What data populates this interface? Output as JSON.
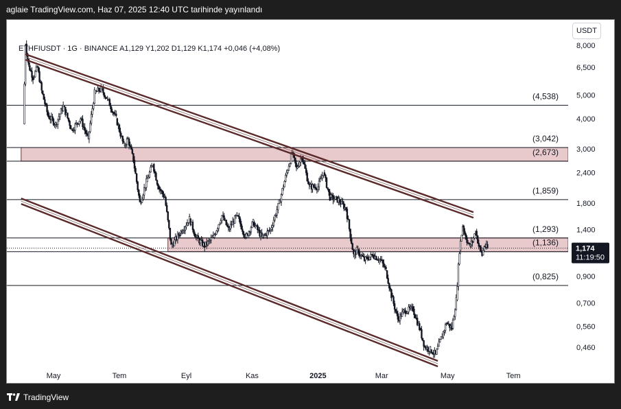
{
  "header": {
    "publish_text": "aglaie TradingView.com, Haz 07, 2025 12:40 UTC tarihinde yayınlandı"
  },
  "legend": {
    "symbol_line": "ETHFIUSDT · 1G · BINANCE  A1,129  Y1,202  D1,129  K1,174  +0,046 (+4,08%)"
  },
  "currency_button": "USDT",
  "footer": {
    "brand": "TradingView"
  },
  "colors": {
    "channel": "#5a2a2a",
    "zone_fill": "#e8c9cc",
    "candle": "#131722",
    "level_line": "#131722",
    "price_badge": "#131722"
  },
  "chart_data": {
    "type": "candlestick",
    "symbol": "ETHFIUSDT",
    "interval": "1G",
    "exchange": "BINANCE",
    "ohlc_last": {
      "open": 1.129,
      "high": 1.202,
      "low": 1.129,
      "close": 1.174,
      "change": 0.046,
      "change_pct": "+4,08%"
    },
    "y_scale": "log",
    "y_ticks": [
      {
        "value": 8.0,
        "label": "8,000"
      },
      {
        "value": 6.5,
        "label": "6,500"
      },
      {
        "value": 5.0,
        "label": "5,000"
      },
      {
        "value": 4.0,
        "label": "4,000"
      },
      {
        "value": 3.0,
        "label": "3,000"
      },
      {
        "value": 2.4,
        "label": "2,400"
      },
      {
        "value": 1.8,
        "label": "1,800"
      },
      {
        "value": 1.4,
        "label": "1,400"
      },
      {
        "value": 0.9,
        "label": "0,900"
      },
      {
        "value": 0.7,
        "label": "0,700"
      },
      {
        "value": 0.56,
        "label": "0,560"
      },
      {
        "value": 0.46,
        "label": "0,460"
      }
    ],
    "x_ticks": [
      {
        "date": "2024-05-01",
        "label": "May"
      },
      {
        "date": "2024-07-01",
        "label": "Tem"
      },
      {
        "date": "2024-09-01",
        "label": "Eyl"
      },
      {
        "date": "2024-11-01",
        "label": "Kas"
      },
      {
        "date": "2025-01-01",
        "label": "2025"
      },
      {
        "date": "2025-03-01",
        "label": "Mar"
      },
      {
        "date": "2025-05-01",
        "label": "May"
      },
      {
        "date": "2025-07-01",
        "label": "Tem"
      }
    ],
    "levels": [
      {
        "value": 4.538,
        "label": "(4,538)"
      },
      {
        "value": 3.042,
        "label": "(3,042)"
      },
      {
        "value": 2.673,
        "label": "(2,673)"
      },
      {
        "value": 1.859,
        "label": "(1,859)"
      },
      {
        "value": 1.293,
        "label": "(1,293)"
      },
      {
        "value": 1.136,
        "label": "(1,136)"
      },
      {
        "value": 0.825,
        "label": "(0,825)"
      }
    ],
    "zones": [
      {
        "from": 2.673,
        "to": 3.042,
        "start": "2024-04-01"
      },
      {
        "from": 1.136,
        "to": 1.293,
        "start": "2024-08-15"
      }
    ],
    "channel": {
      "upper": {
        "start": {
          "date": "2024-04-05",
          "value": 7.35
        },
        "end": {
          "date": "2025-05-25",
          "value": 1.65
        }
      },
      "lower": {
        "start": {
          "date": "2024-04-01",
          "value": 1.88
        },
        "end": {
          "date": "2025-04-22",
          "value": 0.404
        }
      }
    },
    "current_price": {
      "value": 1.174,
      "label": "1,174",
      "countdown": "11:19:50"
    },
    "series": [
      {
        "date": "2024-04-03",
        "close": 3.8
      },
      {
        "date": "2024-04-05",
        "close": 8.1
      },
      {
        "date": "2024-04-08",
        "close": 6.6
      },
      {
        "date": "2024-04-12",
        "close": 5.9
      },
      {
        "date": "2024-04-16",
        "close": 6.5
      },
      {
        "date": "2024-04-20",
        "close": 5.2
      },
      {
        "date": "2024-04-26",
        "close": 4.1
      },
      {
        "date": "2024-05-03",
        "close": 3.8
      },
      {
        "date": "2024-05-10",
        "close": 4.5
      },
      {
        "date": "2024-05-18",
        "close": 3.6
      },
      {
        "date": "2024-05-26",
        "close": 4.0
      },
      {
        "date": "2024-06-02",
        "close": 3.3
      },
      {
        "date": "2024-06-08",
        "close": 5.1
      },
      {
        "date": "2024-06-14",
        "close": 5.3
      },
      {
        "date": "2024-06-20",
        "close": 4.8
      },
      {
        "date": "2024-06-28",
        "close": 4.0
      },
      {
        "date": "2024-07-05",
        "close": 3.1
      },
      {
        "date": "2024-07-09",
        "close": 3.3
      },
      {
        "date": "2024-07-14",
        "close": 2.7
      },
      {
        "date": "2024-07-20",
        "close": 1.8
      },
      {
        "date": "2024-07-26",
        "close": 2.2
      },
      {
        "date": "2024-08-01",
        "close": 2.6
      },
      {
        "date": "2024-08-06",
        "close": 2.1
      },
      {
        "date": "2024-08-12",
        "close": 1.9
      },
      {
        "date": "2024-08-18",
        "close": 1.2
      },
      {
        "date": "2024-08-26",
        "close": 1.35
      },
      {
        "date": "2024-09-04",
        "close": 1.55
      },
      {
        "date": "2024-09-10",
        "close": 1.3
      },
      {
        "date": "2024-09-18",
        "close": 1.2
      },
      {
        "date": "2024-09-26",
        "close": 1.3
      },
      {
        "date": "2024-10-04",
        "close": 1.6
      },
      {
        "date": "2024-10-10",
        "close": 1.4
      },
      {
        "date": "2024-10-18",
        "close": 1.6
      },
      {
        "date": "2024-10-26",
        "close": 1.3
      },
      {
        "date": "2024-11-02",
        "close": 1.5
      },
      {
        "date": "2024-11-10",
        "close": 1.3
      },
      {
        "date": "2024-11-18",
        "close": 1.4
      },
      {
        "date": "2024-11-26",
        "close": 1.8
      },
      {
        "date": "2024-12-03",
        "close": 2.4
      },
      {
        "date": "2024-12-08",
        "close": 2.9
      },
      {
        "date": "2024-12-12",
        "close": 2.5
      },
      {
        "date": "2024-12-17",
        "close": 2.8
      },
      {
        "date": "2024-12-24",
        "close": 2.1
      },
      {
        "date": "2025-01-01",
        "close": 2.1
      },
      {
        "date": "2025-01-06",
        "close": 2.4
      },
      {
        "date": "2025-01-12",
        "close": 1.9
      },
      {
        "date": "2025-01-20",
        "close": 1.85
      },
      {
        "date": "2025-01-27",
        "close": 1.7
      },
      {
        "date": "2025-02-03",
        "close": 1.1
      },
      {
        "date": "2025-02-06",
        "close": 1.15
      },
      {
        "date": "2025-02-13",
        "close": 1.05
      },
      {
        "date": "2025-02-21",
        "close": 1.1
      },
      {
        "date": "2025-02-28",
        "close": 1.05
      },
      {
        "date": "2025-03-05",
        "close": 0.95
      },
      {
        "date": "2025-03-10",
        "close": 0.75
      },
      {
        "date": "2025-03-16",
        "close": 0.6
      },
      {
        "date": "2025-03-22",
        "close": 0.65
      },
      {
        "date": "2025-03-30",
        "close": 0.66
      },
      {
        "date": "2025-04-05",
        "close": 0.55
      },
      {
        "date": "2025-04-10",
        "close": 0.46
      },
      {
        "date": "2025-04-15",
        "close": 0.45
      },
      {
        "date": "2025-04-20",
        "close": 0.43
      },
      {
        "date": "2025-04-25",
        "close": 0.5
      },
      {
        "date": "2025-04-30",
        "close": 0.58
      },
      {
        "date": "2025-05-05",
        "close": 0.55
      },
      {
        "date": "2025-05-09",
        "close": 0.72
      },
      {
        "date": "2025-05-12",
        "close": 1.15
      },
      {
        "date": "2025-05-15",
        "close": 1.45
      },
      {
        "date": "2025-05-18",
        "close": 1.3
      },
      {
        "date": "2025-05-21",
        "close": 1.2
      },
      {
        "date": "2025-05-24",
        "close": 1.25
      },
      {
        "date": "2025-05-27",
        "close": 1.38
      },
      {
        "date": "2025-05-30",
        "close": 1.2
      },
      {
        "date": "2025-06-02",
        "close": 1.1
      },
      {
        "date": "2025-06-04",
        "close": 1.2
      },
      {
        "date": "2025-06-07",
        "close": 1.174
      }
    ]
  }
}
